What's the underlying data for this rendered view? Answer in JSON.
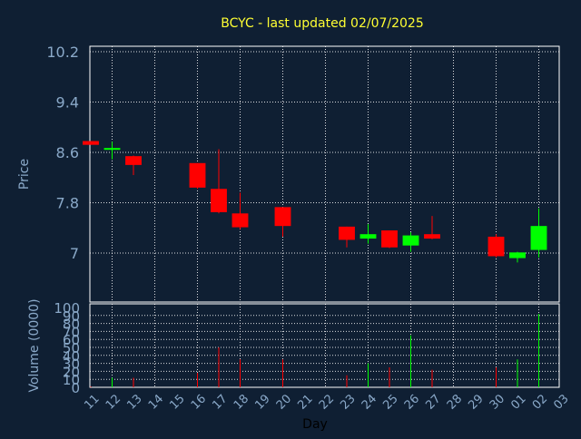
{
  "colors": {
    "background": "#0f1f33",
    "title": "#ffff33",
    "axis_label": "#8aa9c9",
    "grid": "#ffffff",
    "up": "#00ff00",
    "down": "#ff0000"
  },
  "chart_data": {
    "type": "candlestick",
    "title": "BCYC - last updated 02/07/2025",
    "xlabel": "Day",
    "x_ticks": [
      "11",
      "12",
      "13",
      "14",
      "15",
      "16",
      "17",
      "18",
      "19",
      "20",
      "21",
      "22",
      "23",
      "24",
      "25",
      "26",
      "27",
      "28",
      "29",
      "30",
      "01",
      "02",
      "03"
    ],
    "price_panel": {
      "ylabel": "Price",
      "ylim": [
        6.2,
        10.3
      ],
      "y_ticks": [
        "10.2",
        "9.4",
        "8.6",
        "7.8",
        "7"
      ],
      "y_tick_values": [
        10.2,
        9.4,
        8.6,
        7.8,
        7.0
      ],
      "grid": true
    },
    "volume_panel": {
      "ylabel": "Volume (0000)",
      "ylim": [
        0,
        100
      ],
      "y_ticks": [
        "100",
        "90",
        "80",
        "70",
        "60",
        "50",
        "40",
        "30",
        "20",
        "10",
        "0"
      ],
      "y_tick_values": [
        100,
        90,
        80,
        70,
        60,
        50,
        40,
        30,
        20,
        10,
        0
      ],
      "grid": true
    },
    "candles": [
      {
        "day": "11",
        "open": 8.78,
        "high": 8.78,
        "low": 8.72,
        "close": 8.72,
        "volume": 1
      },
      {
        "day": "12",
        "open": 8.64,
        "high": 8.77,
        "low": 8.49,
        "close": 8.67,
        "volume": 12
      },
      {
        "day": "13",
        "open": 8.54,
        "high": 8.55,
        "low": 8.24,
        "close": 8.4,
        "volume": 12
      },
      {
        "day": "16",
        "open": 8.43,
        "high": 8.43,
        "low": 8.02,
        "close": 8.04,
        "volume": 18
      },
      {
        "day": "17",
        "open": 8.02,
        "high": 8.65,
        "low": 7.63,
        "close": 7.65,
        "volume": 50
      },
      {
        "day": "18",
        "open": 7.63,
        "high": 7.96,
        "low": 7.38,
        "close": 7.41,
        "volume": 35
      },
      {
        "day": "20",
        "open": 7.73,
        "high": 7.73,
        "low": 7.26,
        "close": 7.43,
        "volume": 35
      },
      {
        "day": "23",
        "open": 7.42,
        "high": 7.42,
        "low": 7.09,
        "close": 7.21,
        "volume": 15
      },
      {
        "day": "24",
        "open": 7.23,
        "high": 7.46,
        "low": 7.15,
        "close": 7.3,
        "volume": 30
      },
      {
        "day": "25",
        "open": 7.36,
        "high": 7.36,
        "low": 7.08,
        "close": 7.09,
        "volume": 25
      },
      {
        "day": "26",
        "open": 7.12,
        "high": 7.33,
        "low": 7.02,
        "close": 7.28,
        "volume": 65
      },
      {
        "day": "27",
        "open": 7.3,
        "high": 7.59,
        "low": 7.22,
        "close": 7.23,
        "volume": 22
      },
      {
        "day": "30",
        "open": 7.26,
        "high": 7.3,
        "low": 6.93,
        "close": 6.95,
        "volume": 25
      },
      {
        "day": "01",
        "open": 6.92,
        "high": 7.02,
        "low": 6.85,
        "close": 7.01,
        "volume": 35
      },
      {
        "day": "02",
        "open": 7.05,
        "high": 7.71,
        "low": 6.93,
        "close": 7.43,
        "volume": 92
      }
    ]
  }
}
